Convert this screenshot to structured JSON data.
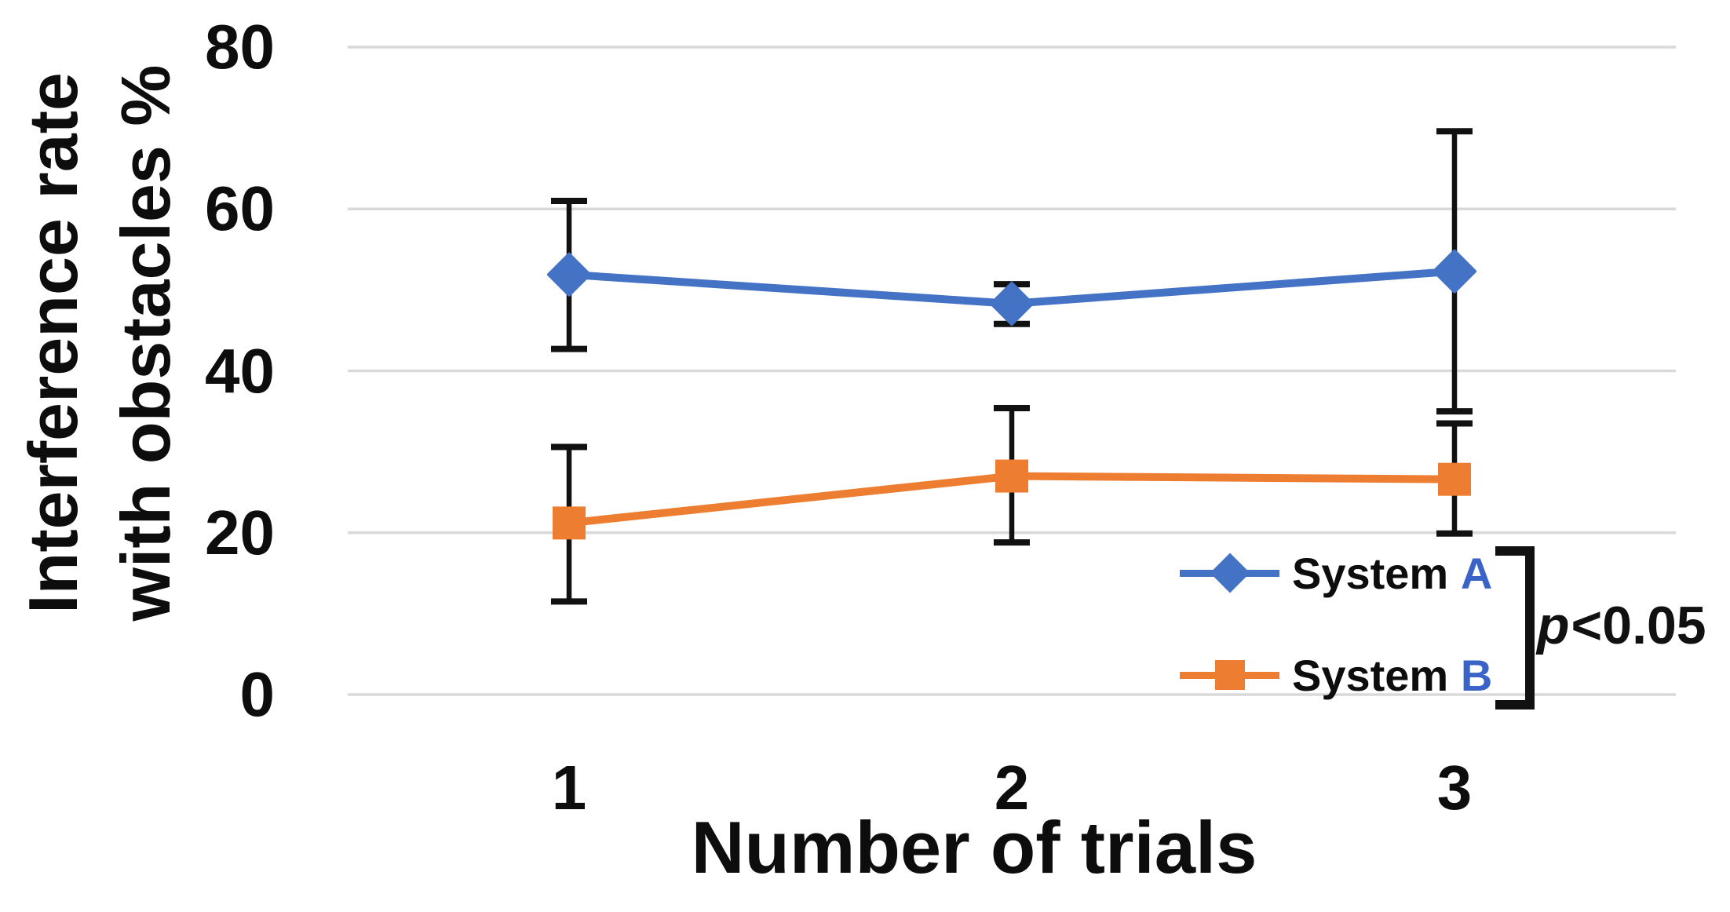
{
  "figure": {
    "background": "#ffffff"
  },
  "chart_data": {
    "type": "line",
    "title": "",
    "xlabel": "Number of trials",
    "ylabel_lines": [
      "Interference rate",
      "with obstacles %"
    ],
    "categories": [
      "1",
      "2",
      "3"
    ],
    "y_ticks": [
      0,
      20,
      40,
      60,
      80
    ],
    "ylim": [
      0,
      80
    ],
    "grid": "horizontal",
    "grid_color": "#d9d9d9",
    "error_bar_color": "#111111",
    "series": [
      {
        "name": "System A",
        "name_prefix": "System",
        "name_letter": "A",
        "marker": "diamond",
        "color": "#4472C4",
        "values": [
          51.9,
          48.3,
          52.3
        ],
        "err_upper": [
          61.0,
          50.7,
          69.6
        ],
        "err_lower": [
          42.7,
          45.8,
          35.0
        ]
      },
      {
        "name": "System B",
        "name_prefix": "System",
        "name_letter": "B",
        "marker": "square",
        "color": "#ED7D31",
        "values": [
          21.2,
          27.0,
          26.6
        ],
        "err_upper": [
          30.6,
          35.4,
          33.5
        ],
        "err_lower": [
          11.5,
          18.8,
          19.9
        ]
      }
    ],
    "legend": {
      "position": "inside-bottom-right",
      "letter_color": "#3A63C8"
    },
    "annotation": {
      "text_italic": "p",
      "text_rest": "<0.05"
    }
  }
}
